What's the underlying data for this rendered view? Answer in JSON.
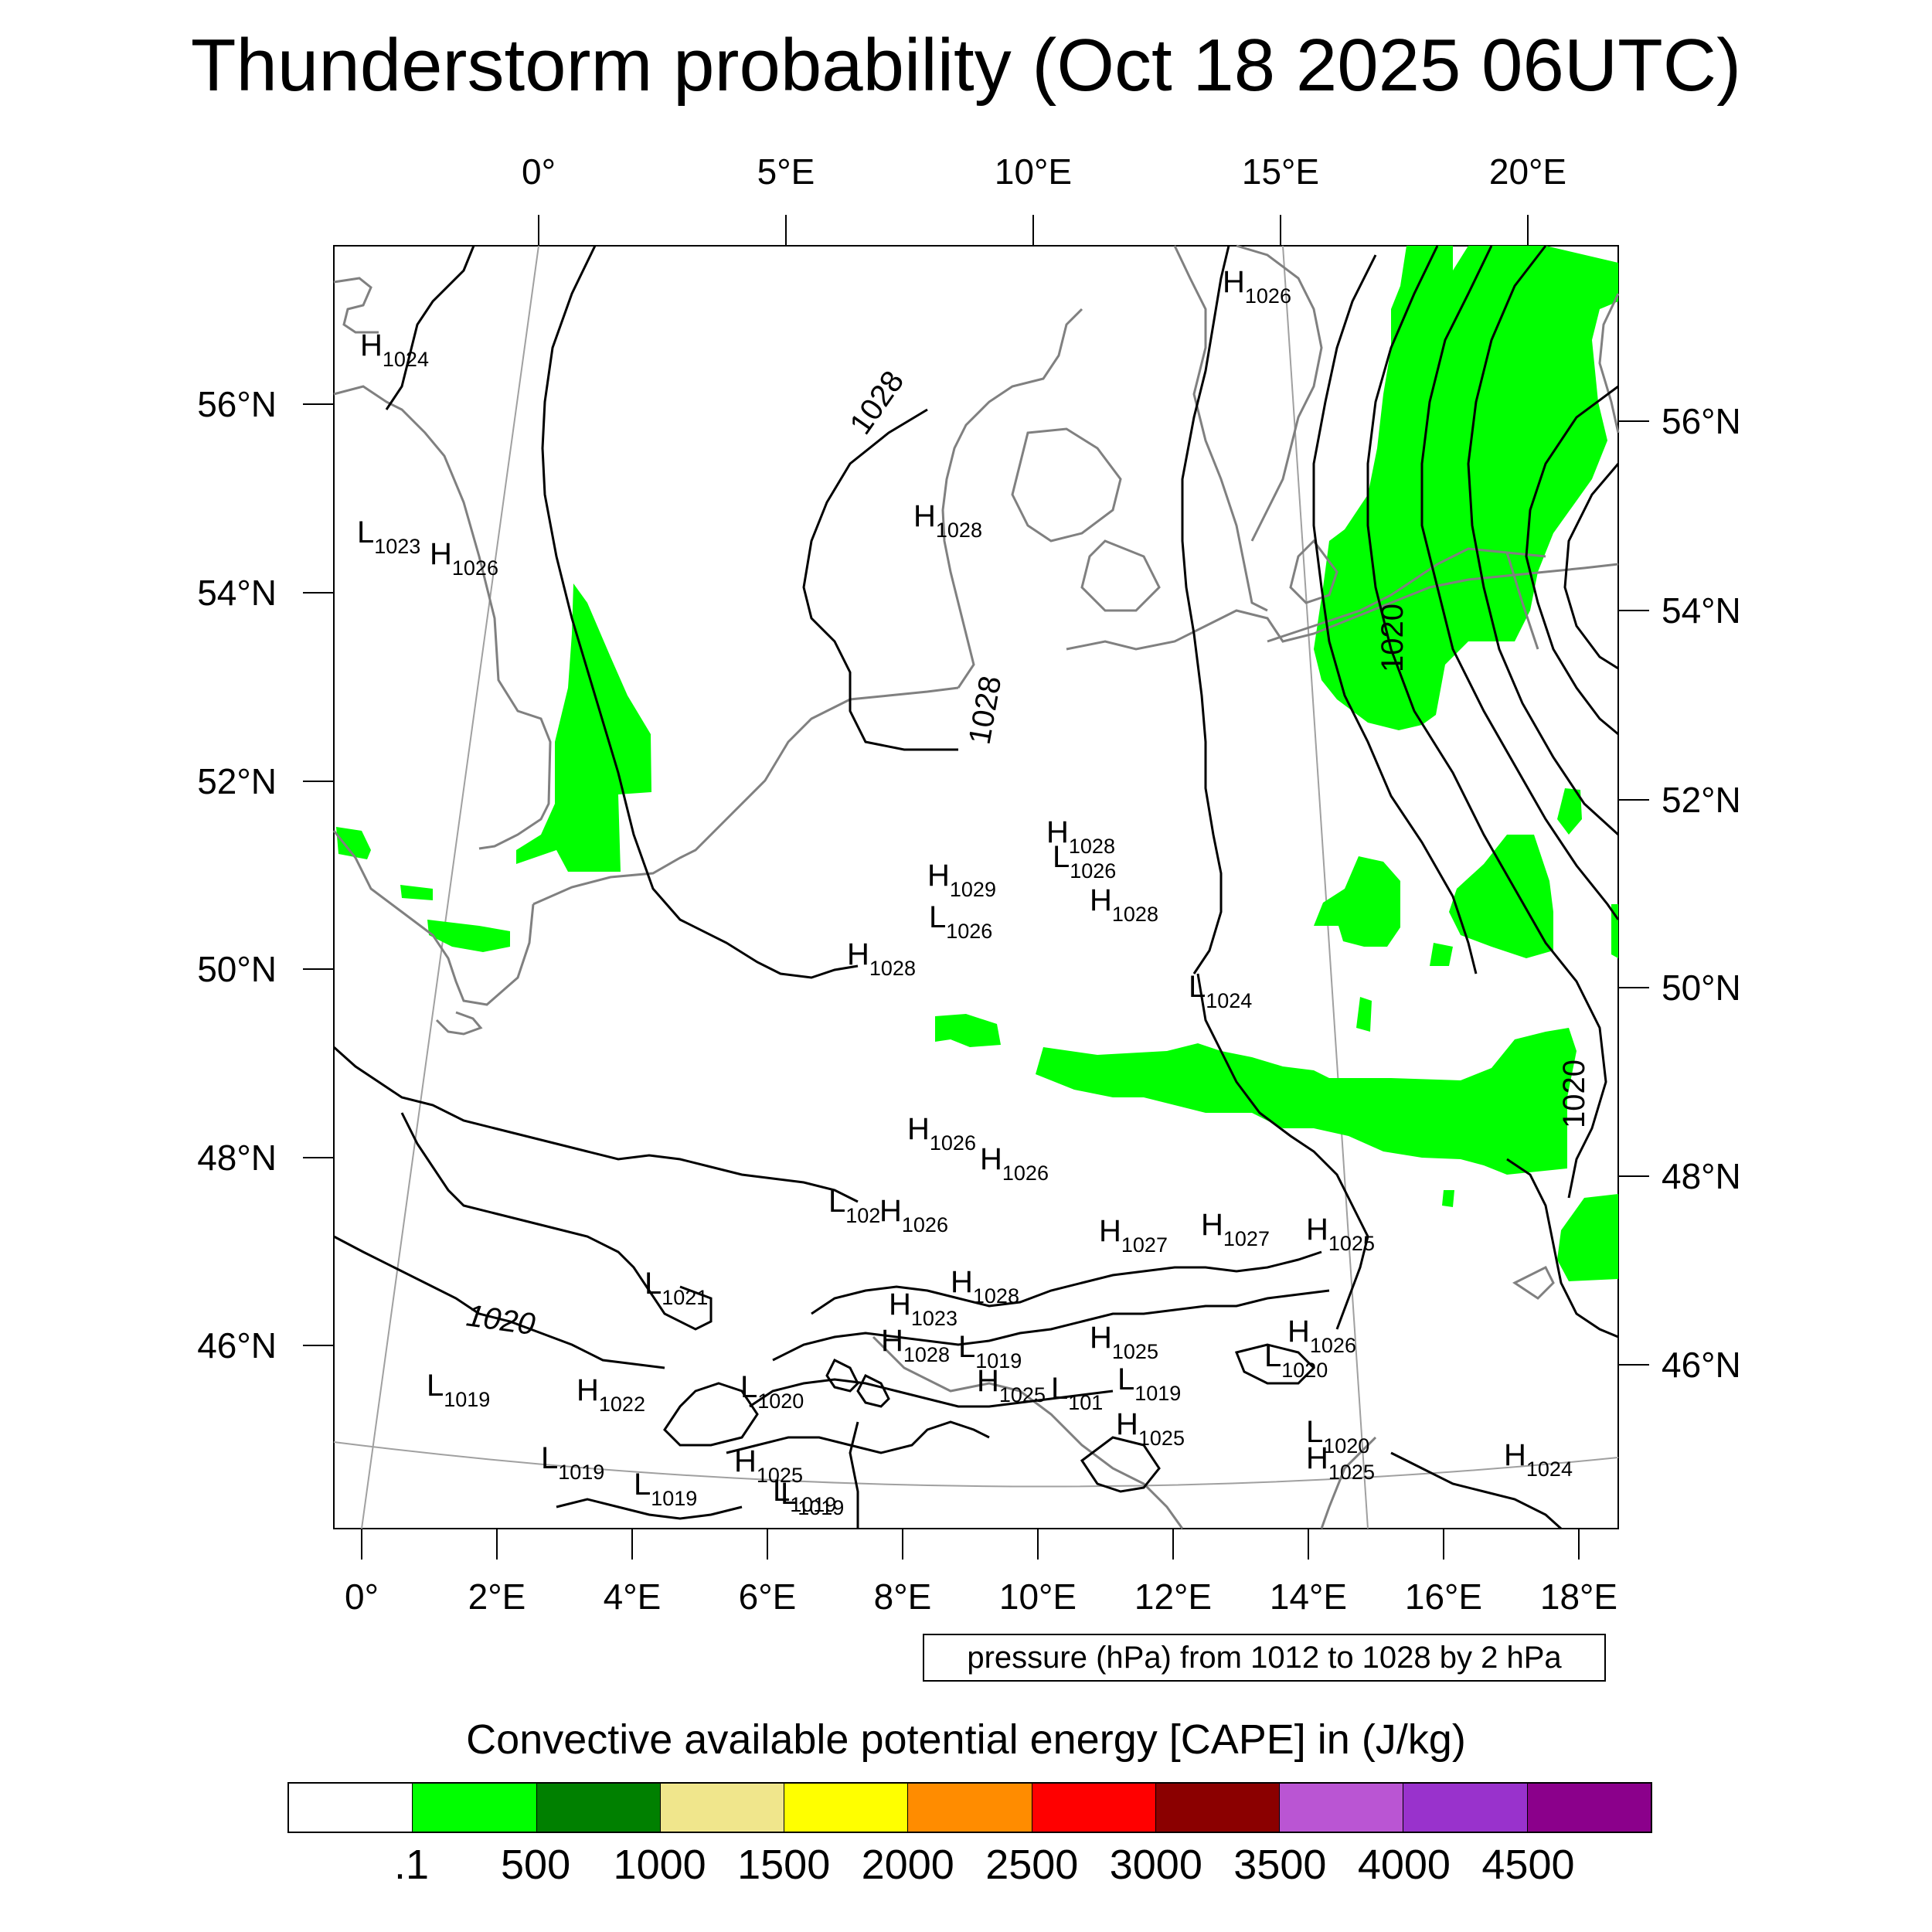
{
  "title": "Thunderstorm probability (Oct 18 2025 06UTC)",
  "map": {
    "top_lon_labels": [
      "0°",
      "5°E",
      "10°E",
      "15°E",
      "20°E"
    ],
    "bottom_lon_labels": [
      "0°",
      "2°E",
      "4°E",
      "6°E",
      "8°E",
      "10°E",
      "12°E",
      "14°E",
      "16°E",
      "18°E"
    ],
    "left_lat_labels": [
      "56°N",
      "54°N",
      "52°N",
      "50°N",
      "48°N",
      "46°N"
    ],
    "right_lat_labels": [
      "56°N",
      "54°N",
      "52°N",
      "50°N",
      "48°N",
      "46°N"
    ],
    "isobar_labels": [
      "1028",
      "1028",
      "1020",
      "1020",
      "1020"
    ],
    "pressure_centers": [
      {
        "type": "H",
        "value": "1024"
      },
      {
        "type": "L",
        "value": "1023"
      },
      {
        "type": "H",
        "value": "1026"
      },
      {
        "type": "H",
        "value": "1026"
      },
      {
        "type": "H",
        "value": "1028"
      },
      {
        "type": "H",
        "value": "1029"
      },
      {
        "type": "L",
        "value": "1026"
      },
      {
        "type": "H",
        "value": "1028"
      },
      {
        "type": "L",
        "value": "1026"
      },
      {
        "type": "H",
        "value": "1028"
      },
      {
        "type": "H",
        "value": "1028"
      },
      {
        "type": "L",
        "value": "1024"
      },
      {
        "type": "H",
        "value": "1026"
      },
      {
        "type": "H",
        "value": "1026"
      },
      {
        "type": "L",
        "value": "102"
      },
      {
        "type": "H",
        "value": "1026"
      },
      {
        "type": "H",
        "value": "1027"
      },
      {
        "type": "H",
        "value": "1027"
      },
      {
        "type": "H",
        "value": "1025"
      },
      {
        "type": "L",
        "value": "1021"
      },
      {
        "type": "H",
        "value": "1028"
      },
      {
        "type": "H",
        "value": "1023"
      },
      {
        "type": "H",
        "value": "1028"
      },
      {
        "type": "L",
        "value": "1019"
      },
      {
        "type": "H",
        "value": "1025"
      },
      {
        "type": "H",
        "value": "1026"
      },
      {
        "type": "L",
        "value": "1020"
      },
      {
        "type": "L",
        "value": "1019"
      },
      {
        "type": "H",
        "value": "1022"
      },
      {
        "type": "L",
        "value": "1020"
      },
      {
        "type": "H",
        "value": "1025"
      },
      {
        "type": "L",
        "value": "1019"
      },
      {
        "type": "L",
        "value": "1019"
      },
      {
        "type": "H",
        "value": "1025"
      },
      {
        "type": "L",
        "value": "1020"
      },
      {
        "type": "L",
        "value": "1019"
      },
      {
        "type": "L",
        "value": "1019"
      },
      {
        "type": "H",
        "value": "1025"
      },
      {
        "type": "L",
        "value": "101"
      },
      {
        "type": "L",
        "value": "1019"
      },
      {
        "type": "H",
        "value": "1025"
      },
      {
        "type": "H",
        "value": "1024"
      }
    ],
    "colors": {
      "cape_low": "#00ff00",
      "coastline": "#808080",
      "isobar": "#000000",
      "grid": "#a0a0a0"
    }
  },
  "pressure_note": "pressure (hPa) from 1012 to 1028 by 2 hPa",
  "colorbar": {
    "title": "Convective available potential energy [CAPE] in (J/kg)",
    "colors": [
      "#ffffff",
      "#00ff00",
      "#008000",
      "#f0e68c",
      "#ffff00",
      "#ff8c00",
      "#ff0000",
      "#8b0000",
      "#ba55d3",
      "#9932cc",
      "#8b008b"
    ],
    "tick_labels": [
      ".1",
      "500",
      "1000",
      "1500",
      "2000",
      "2500",
      "3000",
      "3500",
      "4000",
      "4500"
    ]
  }
}
